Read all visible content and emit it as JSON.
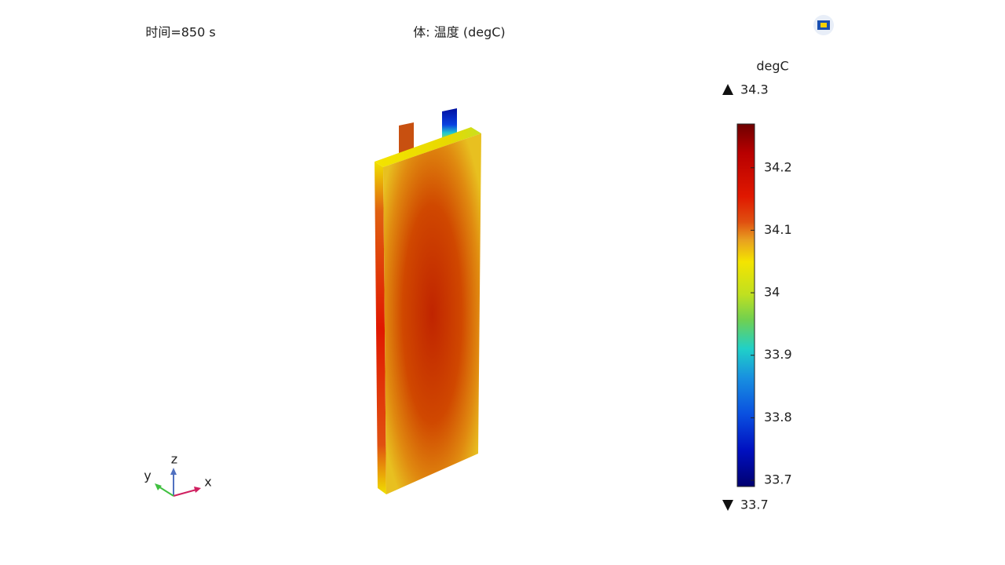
{
  "header": {
    "time": "时间=850 s",
    "title": "体: 温度 (degC)"
  },
  "colorbar": {
    "unit": "degC",
    "max": 34.3,
    "min": 33.7,
    "lim": [
      33.69,
      34.27
    ],
    "ticks": [
      34.2,
      34.1,
      34,
      33.9,
      33.8,
      33.7
    ]
  },
  "axes": {
    "z": "z",
    "y": "y",
    "x": "x"
  }
}
